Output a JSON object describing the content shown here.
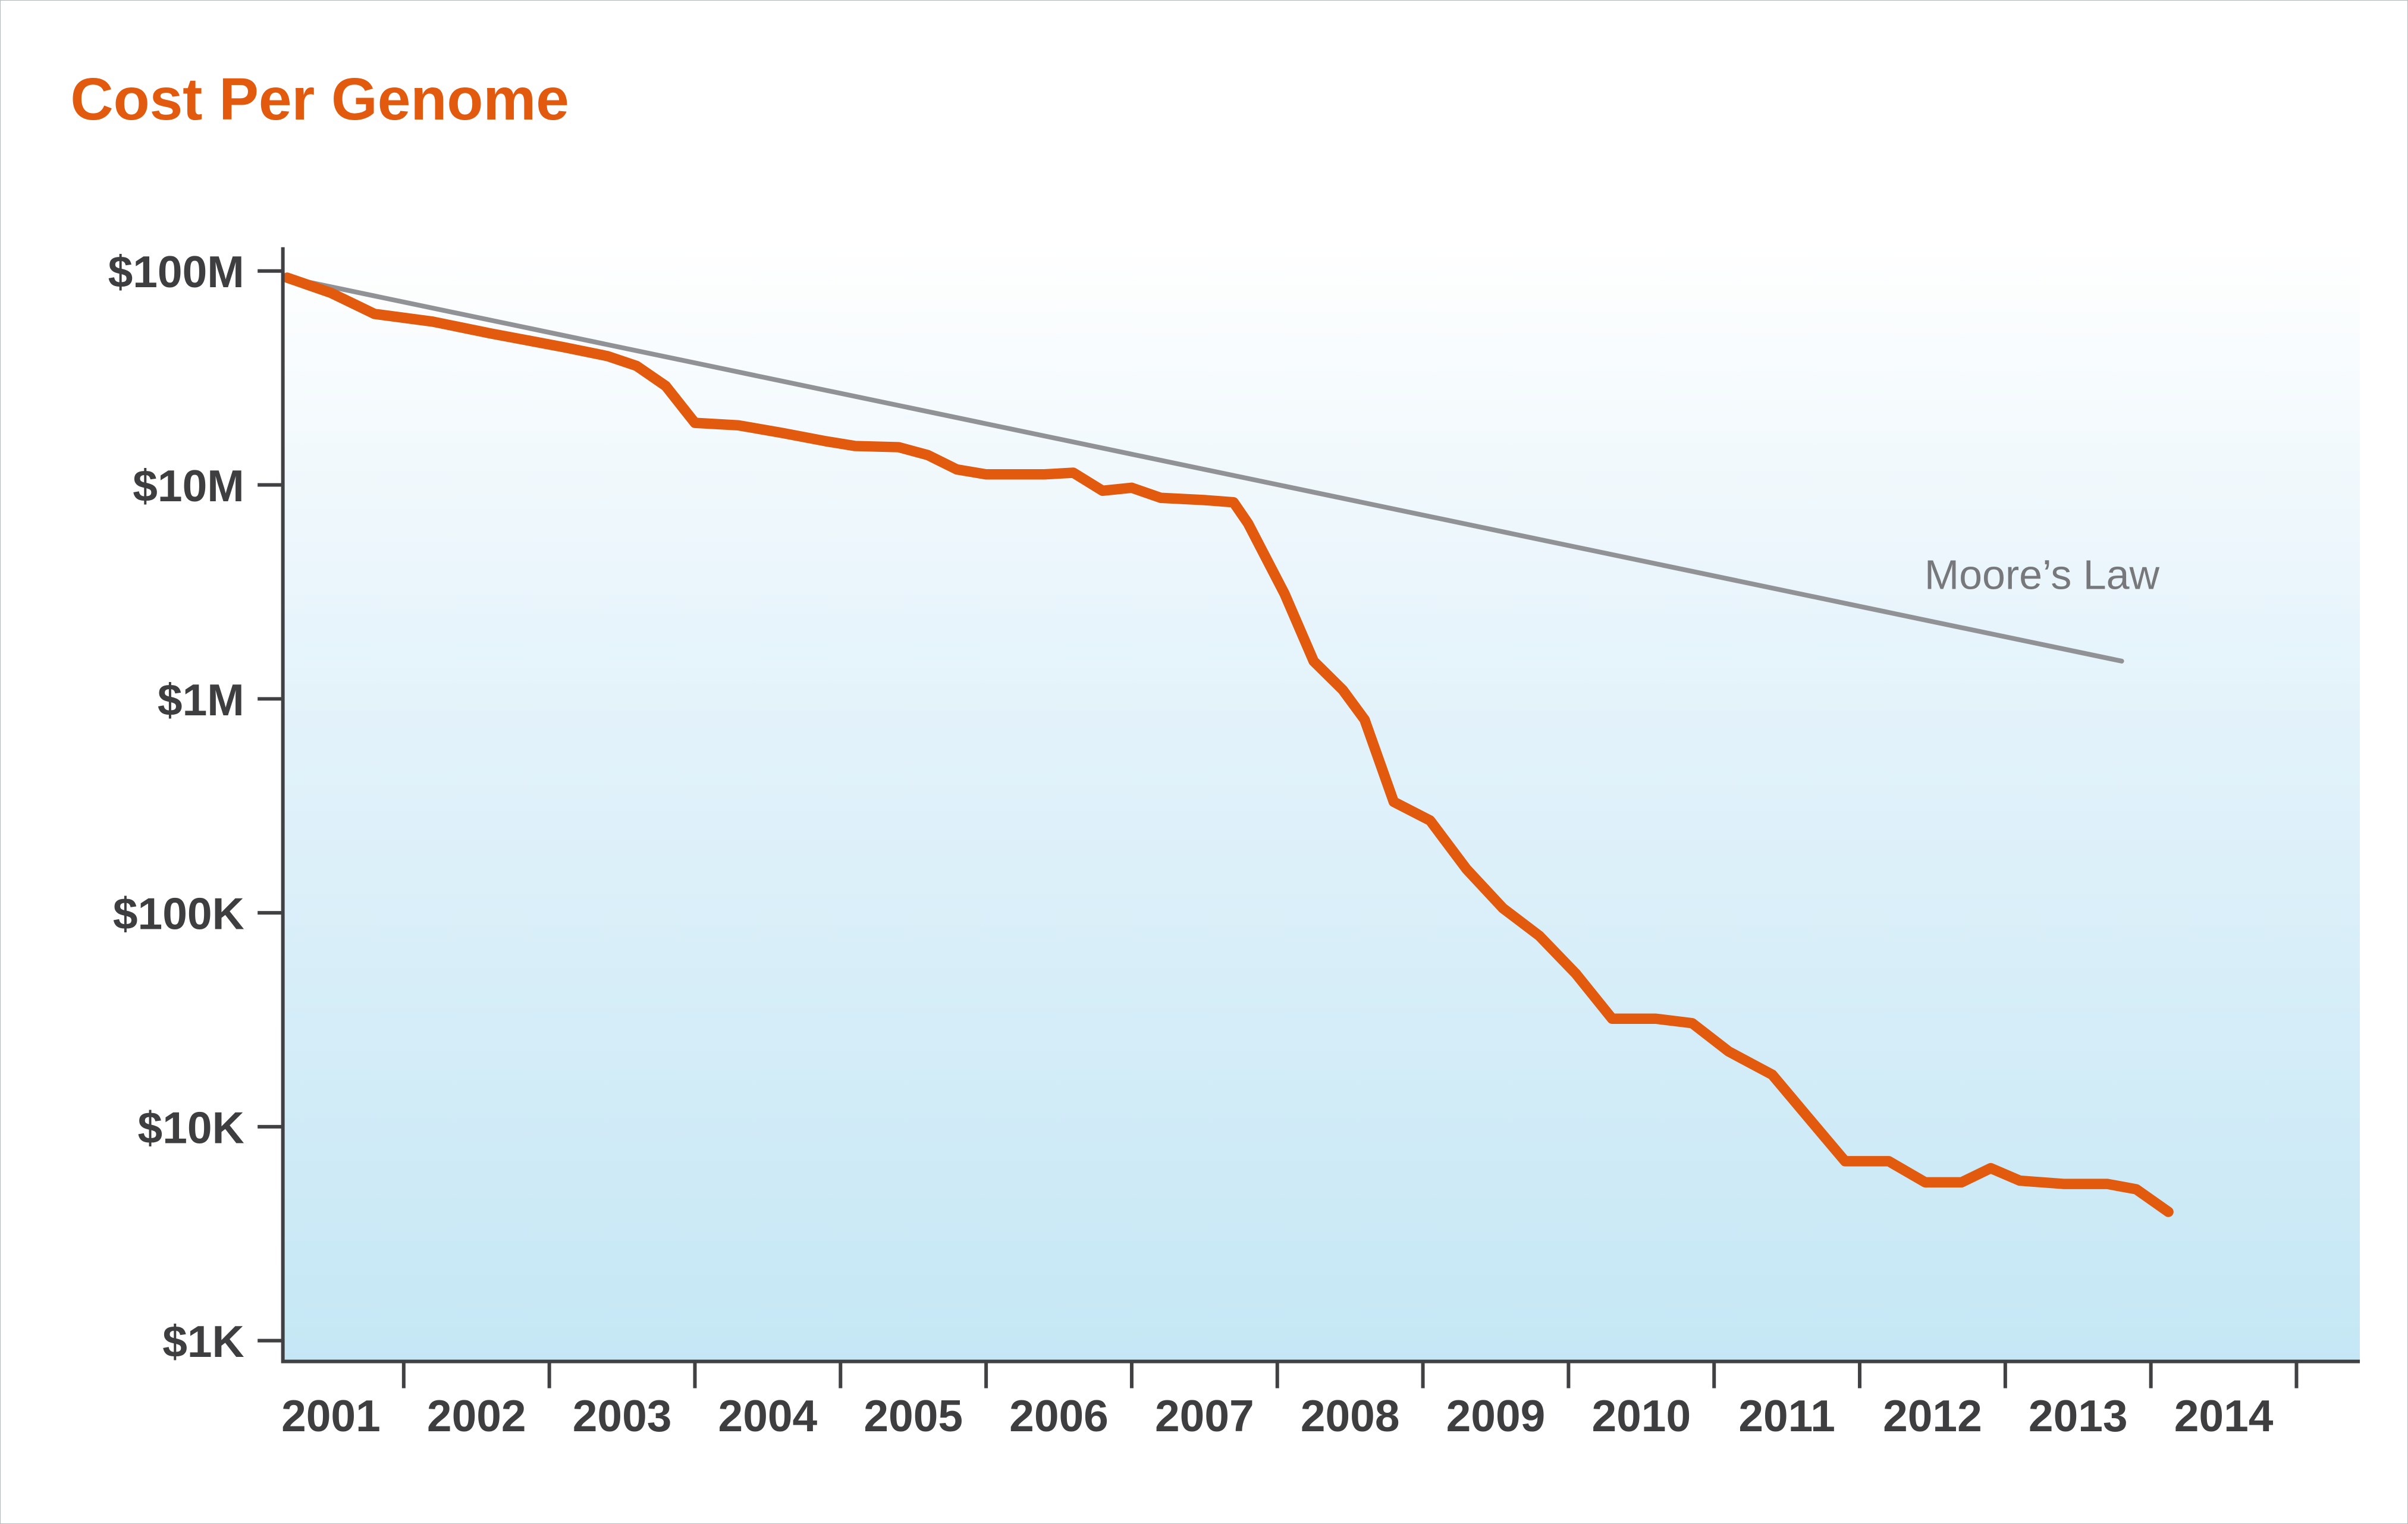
{
  "page": {
    "background": "#ffffff"
  },
  "chart_data": {
    "type": "line",
    "title": "Cost Per Genome",
    "title_color": "#e15a0e",
    "xlabel": "",
    "ylabel": "",
    "grid": "off",
    "legend": "none",
    "x_axis": {
      "labels": [
        "2001",
        "2002",
        "2003",
        "2004",
        "2005",
        "2006",
        "2007",
        "2008",
        "2009",
        "2010",
        "2011",
        "2012",
        "2013",
        "2014"
      ],
      "range": [
        2000.67,
        2014.95
      ]
    },
    "y_axis": {
      "scale": "log",
      "range": [
        1000,
        100000000
      ],
      "ticks": [
        {
          "label": "$100M",
          "value": 100000000
        },
        {
          "label": "$10M",
          "value": 10000000
        },
        {
          "label": "$1M",
          "value": 1000000
        },
        {
          "label": "$100K",
          "value": 100000
        },
        {
          "label": "$10K",
          "value": 10000
        },
        {
          "label": "$1K",
          "value": 1000
        }
      ]
    },
    "plot_background": {
      "type": "gradient",
      "from": "#ffffff",
      "mid": "#e7f4fb",
      "to": "#c5e7f5"
    },
    "annotations": [
      {
        "text": "Moore’s Law",
        "color": "#77787b"
      }
    ],
    "series": [
      {
        "name": "Cost per Genome",
        "color": "#e15a0e",
        "points": [
          [
            2000.7,
            93000000
          ],
          [
            2001.0,
            79000000
          ],
          [
            2001.3,
            63000000
          ],
          [
            2001.7,
            58000000
          ],
          [
            2002.1,
            51000000
          ],
          [
            2002.6,
            44000000
          ],
          [
            2002.9,
            40000000
          ],
          [
            2003.1,
            36000000
          ],
          [
            2003.3,
            29000000
          ],
          [
            2003.5,
            19500000
          ],
          [
            2003.8,
            19000000
          ],
          [
            2004.1,
            17500000
          ],
          [
            2004.4,
            16000000
          ],
          [
            2004.6,
            15200000
          ],
          [
            2004.9,
            15000000
          ],
          [
            2005.1,
            13800000
          ],
          [
            2005.3,
            11800000
          ],
          [
            2005.5,
            11200000
          ],
          [
            2005.9,
            11200000
          ],
          [
            2006.1,
            11400000
          ],
          [
            2006.3,
            9400000
          ],
          [
            2006.5,
            9700000
          ],
          [
            2006.7,
            8700000
          ],
          [
            2007.0,
            8500000
          ],
          [
            2007.2,
            8300000
          ],
          [
            2007.3,
            6600000
          ],
          [
            2007.55,
            3100000
          ],
          [
            2007.75,
            1500000
          ],
          [
            2007.95,
            1100000
          ],
          [
            2008.1,
            800000
          ],
          [
            2008.3,
            330000
          ],
          [
            2008.55,
            270000
          ],
          [
            2008.8,
            160000
          ],
          [
            2009.05,
            105000
          ],
          [
            2009.3,
            78000
          ],
          [
            2009.55,
            52000
          ],
          [
            2009.8,
            32000
          ],
          [
            2010.1,
            32000
          ],
          [
            2010.35,
            30500
          ],
          [
            2010.6,
            22500
          ],
          [
            2010.9,
            17500
          ],
          [
            2011.2,
            10000
          ],
          [
            2011.4,
            6900
          ],
          [
            2011.7,
            6900
          ],
          [
            2011.95,
            5500
          ],
          [
            2012.2,
            5500
          ],
          [
            2012.4,
            6400
          ],
          [
            2012.6,
            5600
          ],
          [
            2012.9,
            5400
          ],
          [
            2013.2,
            5400
          ],
          [
            2013.4,
            5100
          ],
          [
            2013.62,
            4000
          ]
        ]
      },
      {
        "name": "Moore's Law",
        "color": "#909295",
        "points": [
          [
            2000.7,
            93000000
          ],
          [
            2013.3,
            1500000
          ]
        ]
      }
    ]
  }
}
